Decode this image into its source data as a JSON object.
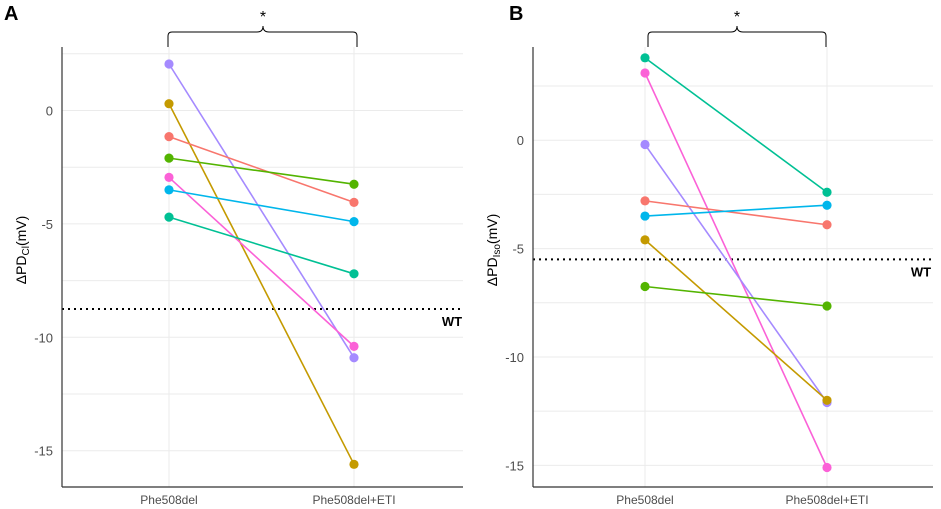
{
  "chart_data": [
    {
      "type": "line",
      "panel_label": "A",
      "ylabel_main": "ΔPD",
      "ylabel_sub": "Cl",
      "ylabel_unit": "(mV)",
      "categories": [
        "Phe508del",
        "Phe508del+ETI"
      ],
      "ylim": [
        -16.6,
        2.8
      ],
      "yticks": [
        0,
        -5,
        -10,
        -15
      ],
      "ytick_labels": [
        "0",
        "-5",
        "-10",
        "-15"
      ],
      "reference": {
        "label": "WT",
        "value": -8.75
      },
      "significance": "*",
      "series": [
        {
          "name": "purple",
          "color": "#a58aff",
          "values": [
            2.05,
            -10.9
          ]
        },
        {
          "name": "olive",
          "color": "#c49a00",
          "values": [
            0.3,
            -15.6
          ]
        },
        {
          "name": "red",
          "color": "#f8766d",
          "values": [
            -1.15,
            -4.05
          ]
        },
        {
          "name": "green",
          "color": "#53b400",
          "values": [
            -2.1,
            -3.25
          ]
        },
        {
          "name": "magenta",
          "color": "#fb61d7",
          "values": [
            -2.95,
            -10.4
          ]
        },
        {
          "name": "blue",
          "color": "#00b6eb",
          "values": [
            -3.5,
            -4.9
          ]
        },
        {
          "name": "teal",
          "color": "#00c094",
          "values": [
            -4.7,
            -7.2
          ]
        }
      ]
    },
    {
      "type": "line",
      "panel_label": "B",
      "ylabel_main": "ΔPD",
      "ylabel_sub": "Iso",
      "ylabel_unit": "(mV)",
      "categories": [
        "Phe508del",
        "Phe508del+ETI"
      ],
      "ylim": [
        -16.0,
        4.3
      ],
      "yticks": [
        0,
        -5,
        -10,
        -15
      ],
      "ytick_labels": [
        "0",
        "-5",
        "-10",
        "-15"
      ],
      "reference": {
        "label": "WT",
        "value": -5.5
      },
      "significance": "*",
      "series": [
        {
          "name": "teal",
          "color": "#00c094",
          "values": [
            3.8,
            -2.4
          ]
        },
        {
          "name": "magenta",
          "color": "#fb61d7",
          "values": [
            3.1,
            -15.1
          ]
        },
        {
          "name": "purple",
          "color": "#a58aff",
          "values": [
            -0.2,
            -12.1
          ]
        },
        {
          "name": "red",
          "color": "#f8766d",
          "values": [
            -2.8,
            -3.9
          ]
        },
        {
          "name": "blue",
          "color": "#00b6eb",
          "values": [
            -3.5,
            -3.0
          ]
        },
        {
          "name": "olive",
          "color": "#c49a00",
          "values": [
            -4.6,
            -12.0
          ]
        },
        {
          "name": "green",
          "color": "#53b400",
          "values": [
            -6.75,
            -7.65
          ]
        }
      ]
    }
  ]
}
